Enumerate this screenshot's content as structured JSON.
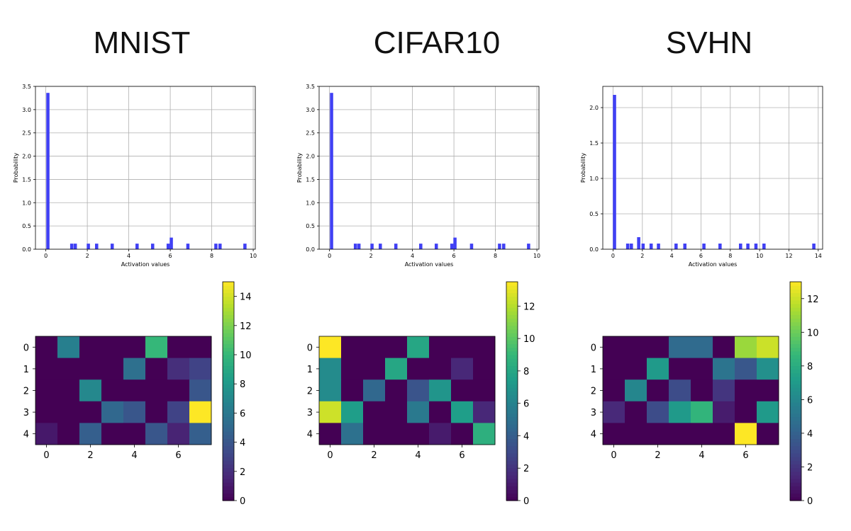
{
  "colors": {
    "bar": "#4040f4",
    "grid": "#b0b0b0"
  },
  "panels": [
    {
      "name": "MNIST",
      "title": "MNIST"
    },
    {
      "name": "CIFAR10",
      "title": "CIFAR10"
    },
    {
      "name": "SVHN",
      "title": "SVHN"
    }
  ],
  "chart_data": [
    {
      "type": "bar",
      "title": "MNIST",
      "xlabel": "Activation values",
      "ylabel": "Probability",
      "xlim": [
        -0.5,
        10.1
      ],
      "ylim": [
        0,
        3.5
      ],
      "xticks": [
        0,
        2,
        4,
        6,
        8,
        10
      ],
      "yticks": [
        0.0,
        0.5,
        1.0,
        1.5,
        2.0,
        2.5,
        3.0,
        3.5
      ],
      "ytick_labels": [
        "0.0",
        "0.5",
        "1.0",
        "1.5",
        "2.0",
        "2.5",
        "3.0",
        "3.5"
      ],
      "bin_width": 0.155,
      "bars": [
        {
          "x": 0.1,
          "y": 3.36
        },
        {
          "x": 1.25,
          "y": 0.12
        },
        {
          "x": 1.42,
          "y": 0.12
        },
        {
          "x": 2.05,
          "y": 0.12
        },
        {
          "x": 2.45,
          "y": 0.12
        },
        {
          "x": 3.2,
          "y": 0.12
        },
        {
          "x": 4.4,
          "y": 0.12
        },
        {
          "x": 5.15,
          "y": 0.12
        },
        {
          "x": 5.9,
          "y": 0.12
        },
        {
          "x": 6.05,
          "y": 0.25
        },
        {
          "x": 6.85,
          "y": 0.12
        },
        {
          "x": 8.2,
          "y": 0.12
        },
        {
          "x": 8.4,
          "y": 0.12
        },
        {
          "x": 9.6,
          "y": 0.12
        }
      ]
    },
    {
      "type": "bar",
      "title": "CIFAR10",
      "xlabel": "Activation values",
      "ylabel": "Probability",
      "xlim": [
        -0.5,
        10.1
      ],
      "ylim": [
        0,
        3.5
      ],
      "xticks": [
        0,
        2,
        4,
        6,
        8,
        10
      ],
      "yticks": [
        0.0,
        0.5,
        1.0,
        1.5,
        2.0,
        2.5,
        3.0,
        3.5
      ],
      "ytick_labels": [
        "0.0",
        "0.5",
        "1.0",
        "1.5",
        "2.0",
        "2.5",
        "3.0",
        "3.5"
      ],
      "bin_width": 0.155,
      "bars": [
        {
          "x": 0.1,
          "y": 3.36
        },
        {
          "x": 1.25,
          "y": 0.12
        },
        {
          "x": 1.42,
          "y": 0.12
        },
        {
          "x": 2.05,
          "y": 0.12
        },
        {
          "x": 2.45,
          "y": 0.12
        },
        {
          "x": 3.2,
          "y": 0.12
        },
        {
          "x": 4.4,
          "y": 0.12
        },
        {
          "x": 5.15,
          "y": 0.12
        },
        {
          "x": 5.9,
          "y": 0.12
        },
        {
          "x": 6.05,
          "y": 0.25
        },
        {
          "x": 6.85,
          "y": 0.12
        },
        {
          "x": 8.2,
          "y": 0.12
        },
        {
          "x": 8.4,
          "y": 0.12
        },
        {
          "x": 9.6,
          "y": 0.12
        }
      ]
    },
    {
      "type": "bar",
      "title": "SVHN",
      "xlabel": "Activation values",
      "ylabel": "Probability",
      "xlim": [
        -0.7,
        14.3
      ],
      "ylim": [
        0,
        2.3
      ],
      "xticks": [
        0,
        2,
        4,
        6,
        8,
        10,
        12,
        14
      ],
      "yticks": [
        0.0,
        0.5,
        1.0,
        1.5,
        2.0
      ],
      "ytick_labels": [
        "0.0",
        "0.5",
        "1.0",
        "1.5",
        "2.0"
      ],
      "bin_width": 0.22,
      "bars": [
        {
          "x": 0.1,
          "y": 2.18
        },
        {
          "x": 1.0,
          "y": 0.08
        },
        {
          "x": 1.25,
          "y": 0.08
        },
        {
          "x": 1.75,
          "y": 0.17
        },
        {
          "x": 2.05,
          "y": 0.08
        },
        {
          "x": 2.6,
          "y": 0.08
        },
        {
          "x": 3.1,
          "y": 0.08
        },
        {
          "x": 4.3,
          "y": 0.08
        },
        {
          "x": 4.9,
          "y": 0.08
        },
        {
          "x": 6.2,
          "y": 0.08
        },
        {
          "x": 7.3,
          "y": 0.08
        },
        {
          "x": 8.7,
          "y": 0.08
        },
        {
          "x": 9.2,
          "y": 0.08
        },
        {
          "x": 9.75,
          "y": 0.08
        },
        {
          "x": 10.3,
          "y": 0.08
        },
        {
          "x": 13.7,
          "y": 0.08
        }
      ]
    },
    {
      "type": "heatmap",
      "title": "MNIST",
      "rows": 5,
      "cols": 8,
      "vmin": 0,
      "vmax": 15,
      "xticks": [
        0,
        2,
        4,
        6
      ],
      "yticks": [
        0,
        1,
        2,
        3,
        4
      ],
      "colorbar_ticks": [
        0,
        2,
        4,
        6,
        8,
        10,
        12,
        14
      ],
      "values": [
        [
          0,
          6.5,
          0,
          0,
          0,
          10,
          0,
          0
        ],
        [
          0,
          0,
          0,
          0,
          5.5,
          0,
          2,
          3
        ],
        [
          0,
          0,
          7,
          0,
          0,
          0,
          0,
          4
        ],
        [
          0,
          0,
          0,
          5,
          4,
          0,
          3,
          15
        ],
        [
          1,
          0,
          4.5,
          0,
          0,
          4,
          1.5,
          4.5
        ]
      ]
    },
    {
      "type": "heatmap",
      "title": "CIFAR10",
      "rows": 5,
      "cols": 8,
      "vmin": 0,
      "vmax": 13.5,
      "xticks": [
        0,
        2,
        4,
        6
      ],
      "yticks": [
        0,
        1,
        2,
        3,
        4
      ],
      "colorbar_ticks": [
        0,
        2,
        4,
        6,
        8,
        10,
        12
      ],
      "values": [
        [
          13.5,
          0,
          0,
          0,
          8,
          0,
          0,
          0
        ],
        [
          6.5,
          0,
          0,
          8,
          0,
          0,
          1.5,
          0
        ],
        [
          6.5,
          0,
          4.5,
          0,
          3.5,
          7,
          0,
          0
        ],
        [
          12.5,
          7.5,
          0,
          0,
          5.5,
          0,
          7.5,
          1.5
        ],
        [
          0,
          5,
          0,
          0,
          0,
          1,
          0,
          8.5
        ]
      ]
    },
    {
      "type": "heatmap",
      "title": "SVHN",
      "rows": 5,
      "cols": 8,
      "vmin": 0,
      "vmax": 13,
      "xticks": [
        0,
        2,
        4,
        6
      ],
      "yticks": [
        0,
        1,
        2,
        3,
        4
      ],
      "colorbar_ticks": [
        0,
        2,
        4,
        6,
        8,
        10,
        12
      ],
      "values": [
        [
          0,
          0,
          0,
          4.5,
          4.5,
          0,
          11,
          12
        ],
        [
          0,
          0,
          7,
          0,
          0,
          5,
          3.5,
          6.5
        ],
        [
          0,
          6,
          0,
          3,
          0,
          2,
          0,
          0
        ],
        [
          1.5,
          0,
          3,
          7,
          8.5,
          1,
          0,
          7
        ],
        [
          0,
          0,
          0,
          0,
          0,
          0,
          13,
          0
        ]
      ]
    }
  ]
}
